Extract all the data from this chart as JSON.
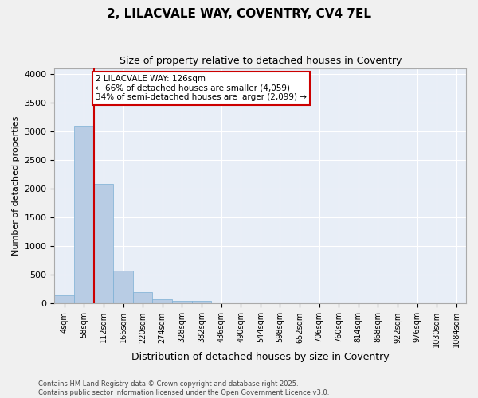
{
  "title": "2, LILACVALE WAY, COVENTRY, CV4 7EL",
  "subtitle": "Size of property relative to detached houses in Coventry",
  "xlabel": "Distribution of detached houses by size in Coventry",
  "ylabel": "Number of detached properties",
  "bar_color": "#b8cce4",
  "bar_edge_color": "#7bafd4",
  "background_color": "#e8eef7",
  "grid_color": "#ffffff",
  "bins": [
    "4sqm",
    "58sqm",
    "112sqm",
    "166sqm",
    "220sqm",
    "274sqm",
    "328sqm",
    "382sqm",
    "436sqm",
    "490sqm",
    "544sqm",
    "598sqm",
    "652sqm",
    "706sqm",
    "760sqm",
    "814sqm",
    "868sqm",
    "922sqm",
    "976sqm",
    "1030sqm",
    "1084sqm"
  ],
  "values": [
    140,
    3100,
    2090,
    575,
    200,
    75,
    55,
    45,
    0,
    0,
    0,
    0,
    0,
    0,
    0,
    0,
    0,
    0,
    0,
    0,
    0
  ],
  "ylim": [
    0,
    4100
  ],
  "yticks": [
    0,
    500,
    1000,
    1500,
    2000,
    2500,
    3000,
    3500,
    4000
  ],
  "property_line_color": "#cc0000",
  "annotation_text": "2 LILACVALE WAY: 126sqm\n← 66% of detached houses are smaller (4,059)\n34% of semi-detached houses are larger (2,099) →",
  "annotation_box_color": "#ffffff",
  "annotation_box_edge_color": "#cc0000",
  "footer_text": "Contains HM Land Registry data © Crown copyright and database right 2025.\nContains public sector information licensed under the Open Government Licence v3.0.",
  "fig_bg_color": "#f0f0f0",
  "fig_width": 6.0,
  "fig_height": 5.0,
  "dpi": 100
}
